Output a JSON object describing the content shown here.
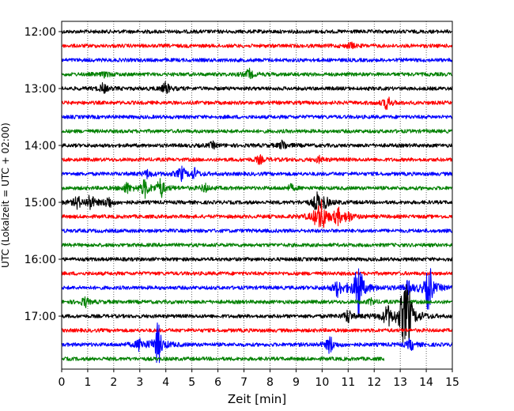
{
  "chart_data": {
    "type": "line",
    "xlabel": "Zeit  [min]",
    "ylabel": "UTC (Lokalzeit = UTC + 02:00)",
    "xlim": [
      0,
      15
    ],
    "x_ticks": [
      0,
      1,
      2,
      3,
      4,
      5,
      6,
      7,
      8,
      9,
      10,
      11,
      12,
      13,
      14,
      15
    ],
    "y_tick_labels": [
      "12:00",
      "13:00",
      "14:00",
      "15:00",
      "16:00",
      "17:00"
    ],
    "rows_per_hour": 4,
    "trace_colors": [
      "#000000",
      "#ff0000",
      "#0000ff",
      "#008000"
    ],
    "grid": "x-dotted",
    "traces": [
      {
        "start": "12:00",
        "end_min": 15,
        "color": "#000000",
        "events": []
      },
      {
        "start": "12:15",
        "end_min": 15,
        "color": "#ff0000",
        "events": [
          {
            "t": 11.1,
            "amp": 0.3
          }
        ]
      },
      {
        "start": "12:30",
        "end_min": 15,
        "color": "#0000ff",
        "events": []
      },
      {
        "start": "12:45",
        "end_min": 15,
        "color": "#008000",
        "events": [
          {
            "t": 1.7,
            "amp": 0.3
          },
          {
            "t": 7.2,
            "amp": 0.5
          }
        ]
      },
      {
        "start": "13:00",
        "end_min": 15,
        "color": "#000000",
        "events": [
          {
            "t": 1.6,
            "amp": 0.5
          },
          {
            "t": 4.0,
            "amp": 0.6
          }
        ]
      },
      {
        "start": "13:15",
        "end_min": 15,
        "color": "#ff0000",
        "events": [
          {
            "t": 12.5,
            "amp": 0.7
          }
        ]
      },
      {
        "start": "13:30",
        "end_min": 15,
        "color": "#0000ff",
        "events": []
      },
      {
        "start": "13:45",
        "end_min": 15,
        "color": "#008000",
        "events": []
      },
      {
        "start": "14:00",
        "end_min": 15,
        "color": "#000000",
        "events": [
          {
            "t": 5.8,
            "amp": 0.3
          },
          {
            "t": 8.5,
            "amp": 0.5
          }
        ]
      },
      {
        "start": "14:15",
        "end_min": 15,
        "color": "#ff0000",
        "events": [
          {
            "t": 7.6,
            "amp": 0.4
          },
          {
            "t": 9.9,
            "amp": 0.3
          }
        ]
      },
      {
        "start": "14:30",
        "end_min": 15,
        "color": "#0000ff",
        "events": [
          {
            "t": 3.3,
            "amp": 0.4
          },
          {
            "t": 4.6,
            "amp": 0.7
          },
          {
            "t": 5.1,
            "amp": 0.5
          }
        ]
      },
      {
        "start": "14:45",
        "end_min": 15,
        "color": "#008000",
        "events": [
          {
            "t": 2.5,
            "amp": 0.5
          },
          {
            "t": 3.2,
            "amp": 0.9
          },
          {
            "t": 3.8,
            "amp": 1.0
          },
          {
            "t": 5.5,
            "amp": 0.4
          },
          {
            "t": 8.8,
            "amp": 0.3
          }
        ]
      },
      {
        "start": "15:00",
        "end_min": 15,
        "color": "#000000",
        "events": [
          {
            "t": 0.6,
            "amp": 0.6
          },
          {
            "t": 1.1,
            "amp": 0.8
          },
          {
            "t": 1.8,
            "amp": 0.6
          },
          {
            "t": 9.8,
            "amp": 0.9
          },
          {
            "t": 10.1,
            "amp": 0.6
          }
        ]
      },
      {
        "start": "15:15",
        "end_min": 15,
        "color": "#ff0000",
        "events": [
          {
            "t": 9.8,
            "amp": 0.8
          },
          {
            "t": 10.0,
            "amp": 1.5
          },
          {
            "t": 10.6,
            "amp": 0.8
          },
          {
            "t": 11.0,
            "amp": 0.5
          }
        ]
      },
      {
        "start": "15:30",
        "end_min": 15,
        "color": "#0000ff",
        "events": []
      },
      {
        "start": "15:45",
        "end_min": 15,
        "color": "#008000",
        "events": []
      },
      {
        "start": "16:00",
        "end_min": 15,
        "color": "#000000",
        "events": []
      },
      {
        "start": "16:15",
        "end_min": 15,
        "color": "#ff0000",
        "events": []
      },
      {
        "start": "16:30",
        "end_min": 15,
        "color": "#0000ff",
        "events": [
          {
            "t": 10.6,
            "amp": 0.8
          },
          {
            "t": 11.4,
            "amp": 3.6
          },
          {
            "t": 13.3,
            "amp": 0.6
          },
          {
            "t": 14.1,
            "amp": 2.6
          }
        ]
      },
      {
        "start": "16:45",
        "end_min": 15,
        "color": "#008000",
        "events": [
          {
            "t": 0.9,
            "amp": 0.5
          },
          {
            "t": 11.9,
            "amp": 0.3
          }
        ]
      },
      {
        "start": "17:00",
        "end_min": 15,
        "color": "#000000",
        "events": [
          {
            "t": 11.0,
            "amp": 0.7
          },
          {
            "t": 12.5,
            "amp": 1.0
          },
          {
            "t": 13.1,
            "amp": 2.2
          },
          {
            "t": 13.3,
            "amp": 3.2
          }
        ]
      },
      {
        "start": "17:15",
        "end_min": 15,
        "color": "#ff0000",
        "events": []
      },
      {
        "start": "17:30",
        "end_min": 15,
        "color": "#0000ff",
        "events": [
          {
            "t": 3.0,
            "amp": 0.6
          },
          {
            "t": 3.7,
            "amp": 2.2
          },
          {
            "t": 10.3,
            "amp": 0.9
          },
          {
            "t": 13.4,
            "amp": 0.6
          }
        ]
      },
      {
        "start": "17:45",
        "end_min": 12.4,
        "color": "#008000",
        "events": []
      }
    ]
  }
}
